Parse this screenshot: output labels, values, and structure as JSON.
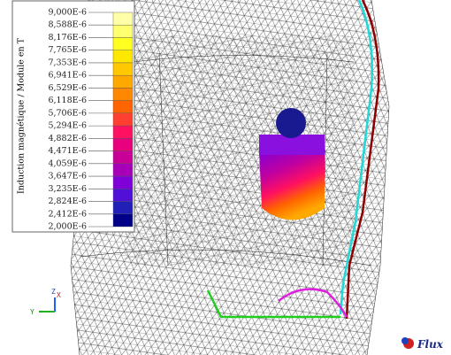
{
  "legend": {
    "title": "Induction magnétique / Module en T",
    "labels": [
      "9,000E-6",
      "8,588E-6",
      "8,176E-6",
      "7,765E-6",
      "7,353E-6",
      "6,941E-6",
      "6,529E-6",
      "6,118E-6",
      "5,706E-6",
      "5,294E-6",
      "4,882E-6",
      "4,471E-6",
      "4,059E-6",
      "3,647E-6",
      "3,235E-6",
      "2,824E-6",
      "2,412E-6",
      "2,000E-6"
    ],
    "colors": [
      "#ffffa8",
      "#ffff70",
      "#ffff20",
      "#ffe800",
      "#ffc800",
      "#ffa800",
      "#ff8800",
      "#ff6400",
      "#ff4030",
      "#ff1060",
      "#e8007c",
      "#c80098",
      "#a800b8",
      "#8000d8",
      "#5010d8",
      "#2020b8",
      "#000088"
    ]
  },
  "triad": {
    "z": "Z",
    "x": "X",
    "y": "Y"
  },
  "logo": "Flux"
}
